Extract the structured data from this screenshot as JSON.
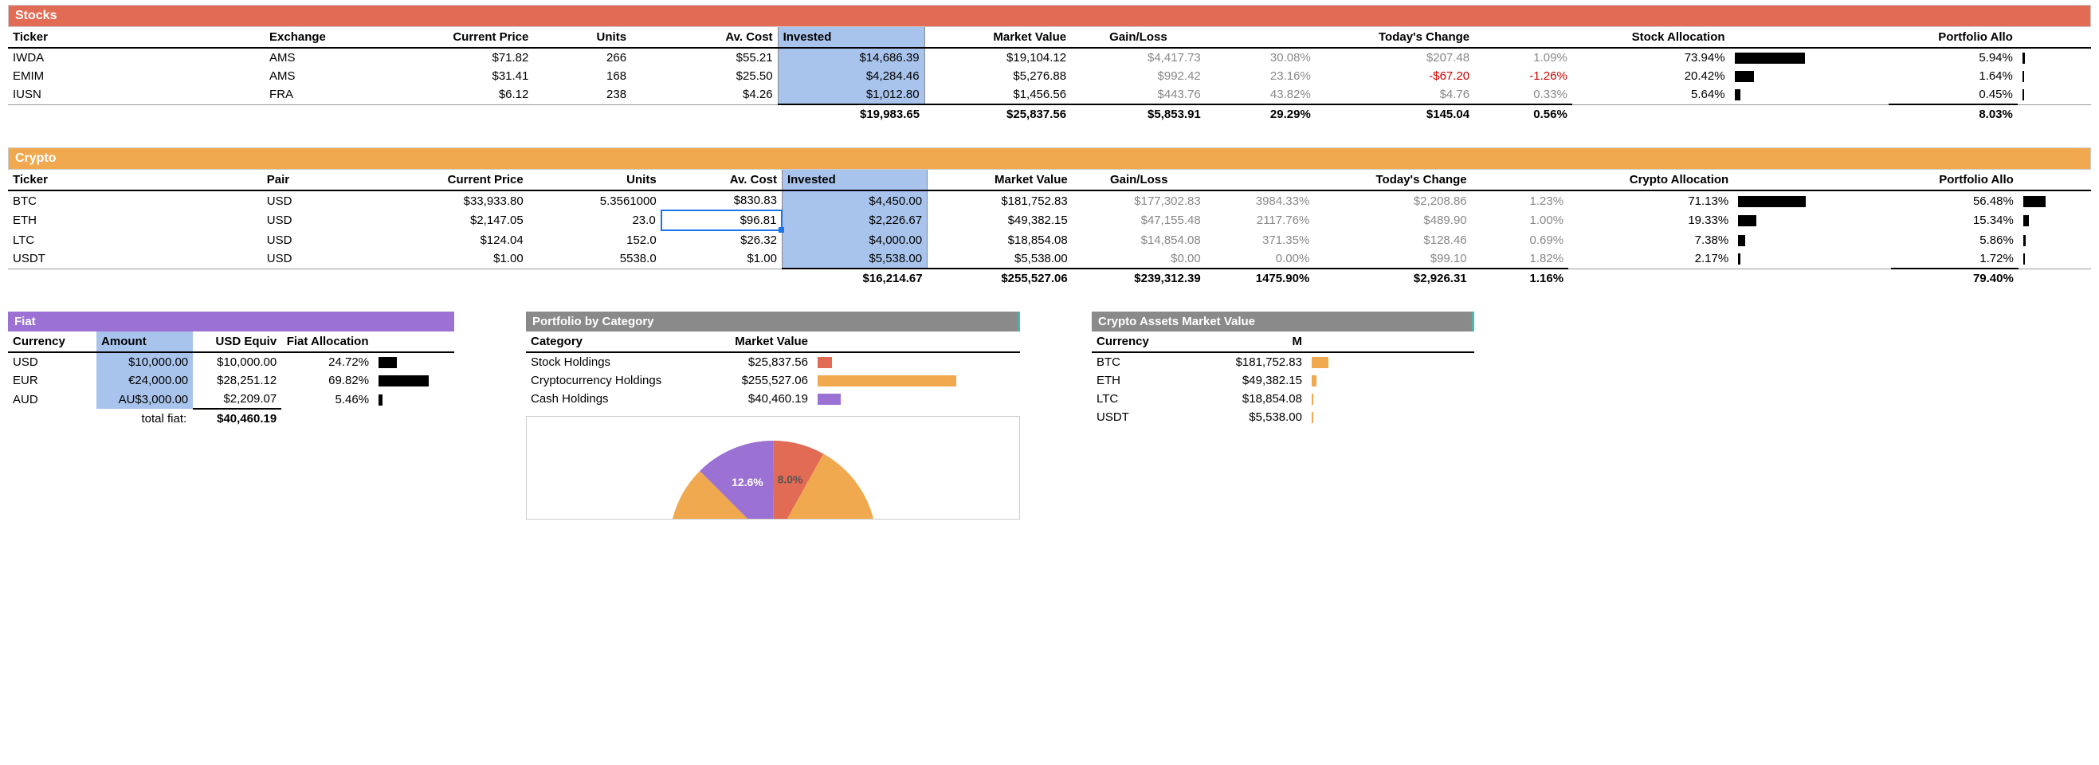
{
  "colors": {
    "stocks_header": "#e16b54",
    "crypto_header": "#f0a94e",
    "fiat_header": "#9b72d4",
    "gray_header": "#8a8a8a",
    "teal_border": "#4db6ac",
    "highlight": "#a9c4ec",
    "selection": "#1a73e8"
  },
  "stocks": {
    "title": "Stocks",
    "headers": [
      "Ticker",
      "Exchange",
      "Current Price",
      "Units",
      "Av. Cost",
      "Invested",
      "Market Value",
      "Gain/Loss",
      "",
      "Today's Change",
      "",
      "Stock Allocation",
      "",
      "Portfolio Allo",
      ""
    ],
    "rows": [
      {
        "ticker": "IWDA",
        "exchange": "AMS",
        "price": "$71.82",
        "units": "266",
        "avcost": "$55.21",
        "invested": "$14,686.39",
        "mv": "$19,104.12",
        "gl": "$4,417.73",
        "glp": "30.08%",
        "today": "$207.48",
        "todayp": "1.09%",
        "alloc": "73.94%",
        "alloc_bar": 74,
        "palloc": "5.94%",
        "palloc_bar": 6
      },
      {
        "ticker": "EMIM",
        "exchange": "AMS",
        "price": "$31.41",
        "units": "168",
        "avcost": "$25.50",
        "invested": "$4,284.46",
        "mv": "$5,276.88",
        "gl": "$992.42",
        "glp": "23.16%",
        "today": "-$67.20",
        "todayp": "-1.26%",
        "today_neg": true,
        "alloc": "20.42%",
        "alloc_bar": 20,
        "palloc": "1.64%",
        "palloc_bar": 2
      },
      {
        "ticker": "IUSN",
        "exchange": "FRA",
        "price": "$6.12",
        "units": "238",
        "avcost": "$4.26",
        "invested": "$1,012.80",
        "mv": "$1,456.56",
        "gl": "$443.76",
        "glp": "43.82%",
        "today": "$4.76",
        "todayp": "0.33%",
        "alloc": "5.64%",
        "alloc_bar": 6,
        "palloc": "0.45%",
        "palloc_bar": 1
      }
    ],
    "totals": {
      "invested": "$19,983.65",
      "mv": "$25,837.56",
      "gl": "$5,853.91",
      "glp": "29.29%",
      "today": "$145.04",
      "todayp": "0.56%",
      "palloc": "8.03%"
    }
  },
  "crypto": {
    "title": "Crypto",
    "headers": [
      "Ticker",
      "Pair",
      "Current Price",
      "Units",
      "Av. Cost",
      "Invested",
      "Market Value",
      "Gain/Loss",
      "",
      "Today's Change",
      "",
      "Crypto Allocation",
      "",
      "Portfolio Allo",
      ""
    ],
    "rows": [
      {
        "ticker": "BTC",
        "pair": "USD",
        "price": "$33,933.80",
        "units": "5.3561000",
        "avcost": "$830.83",
        "invested": "$4,450.00",
        "mv": "$181,752.83",
        "gl": "$177,302.83",
        "glp": "3984.33%",
        "today": "$2,208.86",
        "todayp": "1.23%",
        "alloc": "71.13%",
        "alloc_bar": 71,
        "palloc": "56.48%",
        "palloc_bar": 56
      },
      {
        "ticker": "ETH",
        "pair": "USD",
        "price": "$2,147.05",
        "units": "23.0",
        "avcost": "$96.81",
        "avcost_sel": true,
        "invested": "$2,226.67",
        "mv": "$49,382.15",
        "gl": "$47,155.48",
        "glp": "2117.76%",
        "today": "$489.90",
        "todayp": "1.00%",
        "alloc": "19.33%",
        "alloc_bar": 19,
        "palloc": "15.34%",
        "palloc_bar": 15
      },
      {
        "ticker": "LTC",
        "pair": "USD",
        "price": "$124.04",
        "units": "152.0",
        "avcost": "$26.32",
        "invested": "$4,000.00",
        "mv": "$18,854.08",
        "gl": "$14,854.08",
        "glp": "371.35%",
        "today": "$128.46",
        "todayp": "0.69%",
        "alloc": "7.38%",
        "alloc_bar": 7,
        "palloc": "5.86%",
        "palloc_bar": 6
      },
      {
        "ticker": "USDT",
        "pair": "USD",
        "price": "$1.00",
        "units": "5538.0",
        "avcost": "$1.00",
        "invested": "$5,538.00",
        "mv": "$5,538.00",
        "gl": "$0.00",
        "glp": "0.00%",
        "today": "$99.10",
        "todayp": "1.82%",
        "alloc": "2.17%",
        "alloc_bar": 2,
        "palloc": "1.72%",
        "palloc_bar": 2
      }
    ],
    "totals": {
      "invested": "$16,214.67",
      "mv": "$255,527.06",
      "gl": "$239,312.39",
      "glp": "1475.90%",
      "today": "$2,926.31",
      "todayp": "1.16%",
      "palloc": "79.40%"
    }
  },
  "fiat": {
    "title": "Fiat",
    "headers": [
      "Currency",
      "Amount",
      "USD Equiv",
      "Fiat Allocation",
      ""
    ],
    "rows": [
      {
        "cur": "USD",
        "amount": "$10,000.00",
        "usd": "$10,000.00",
        "alloc": "24.72%",
        "bar": 25
      },
      {
        "cur": "EUR",
        "amount": "€24,000.00",
        "usd": "$28,251.12",
        "alloc": "69.82%",
        "bar": 70
      },
      {
        "cur": "AUD",
        "amount": "AU$3,000.00",
        "usd": "$2,209.07",
        "alloc": "5.46%",
        "bar": 5
      }
    ],
    "total_label": "total fiat:",
    "total": "$40,460.19"
  },
  "portfolio_by_cat": {
    "title": "Portfolio by Category",
    "headers": [
      "Category",
      "Market Value",
      ""
    ],
    "rows": [
      {
        "cat": "Stock Holdings",
        "mv": "$25,837.56",
        "bar": 8,
        "color": "#e16b54"
      },
      {
        "cat": "Cryptocurrency Holdings",
        "mv": "$255,527.06",
        "bar": 79,
        "color": "#f0a94e"
      },
      {
        "cat": "Cash Holdings",
        "mv": "$40,460.19",
        "bar": 13,
        "color": "#9b72d4"
      }
    ],
    "pie": {
      "stock": 8.0,
      "crypto": 79.4,
      "cash": 12.6,
      "stock_label": "8.0%",
      "cash_label": "12.6%"
    }
  },
  "crypto_assets": {
    "title": "Crypto Assets Market Value",
    "headers": [
      "Currency",
      "M",
      ""
    ],
    "rows": [
      {
        "cur": "BTC",
        "mv": "$181,752.83",
        "bar": 71
      },
      {
        "cur": "ETH",
        "mv": "$49,382.15",
        "bar": 19
      },
      {
        "cur": "LTC",
        "mv": "$18,854.08",
        "bar": 7
      },
      {
        "cur": "USDT",
        "mv": "$5,538.00",
        "bar": 2
      }
    ]
  }
}
